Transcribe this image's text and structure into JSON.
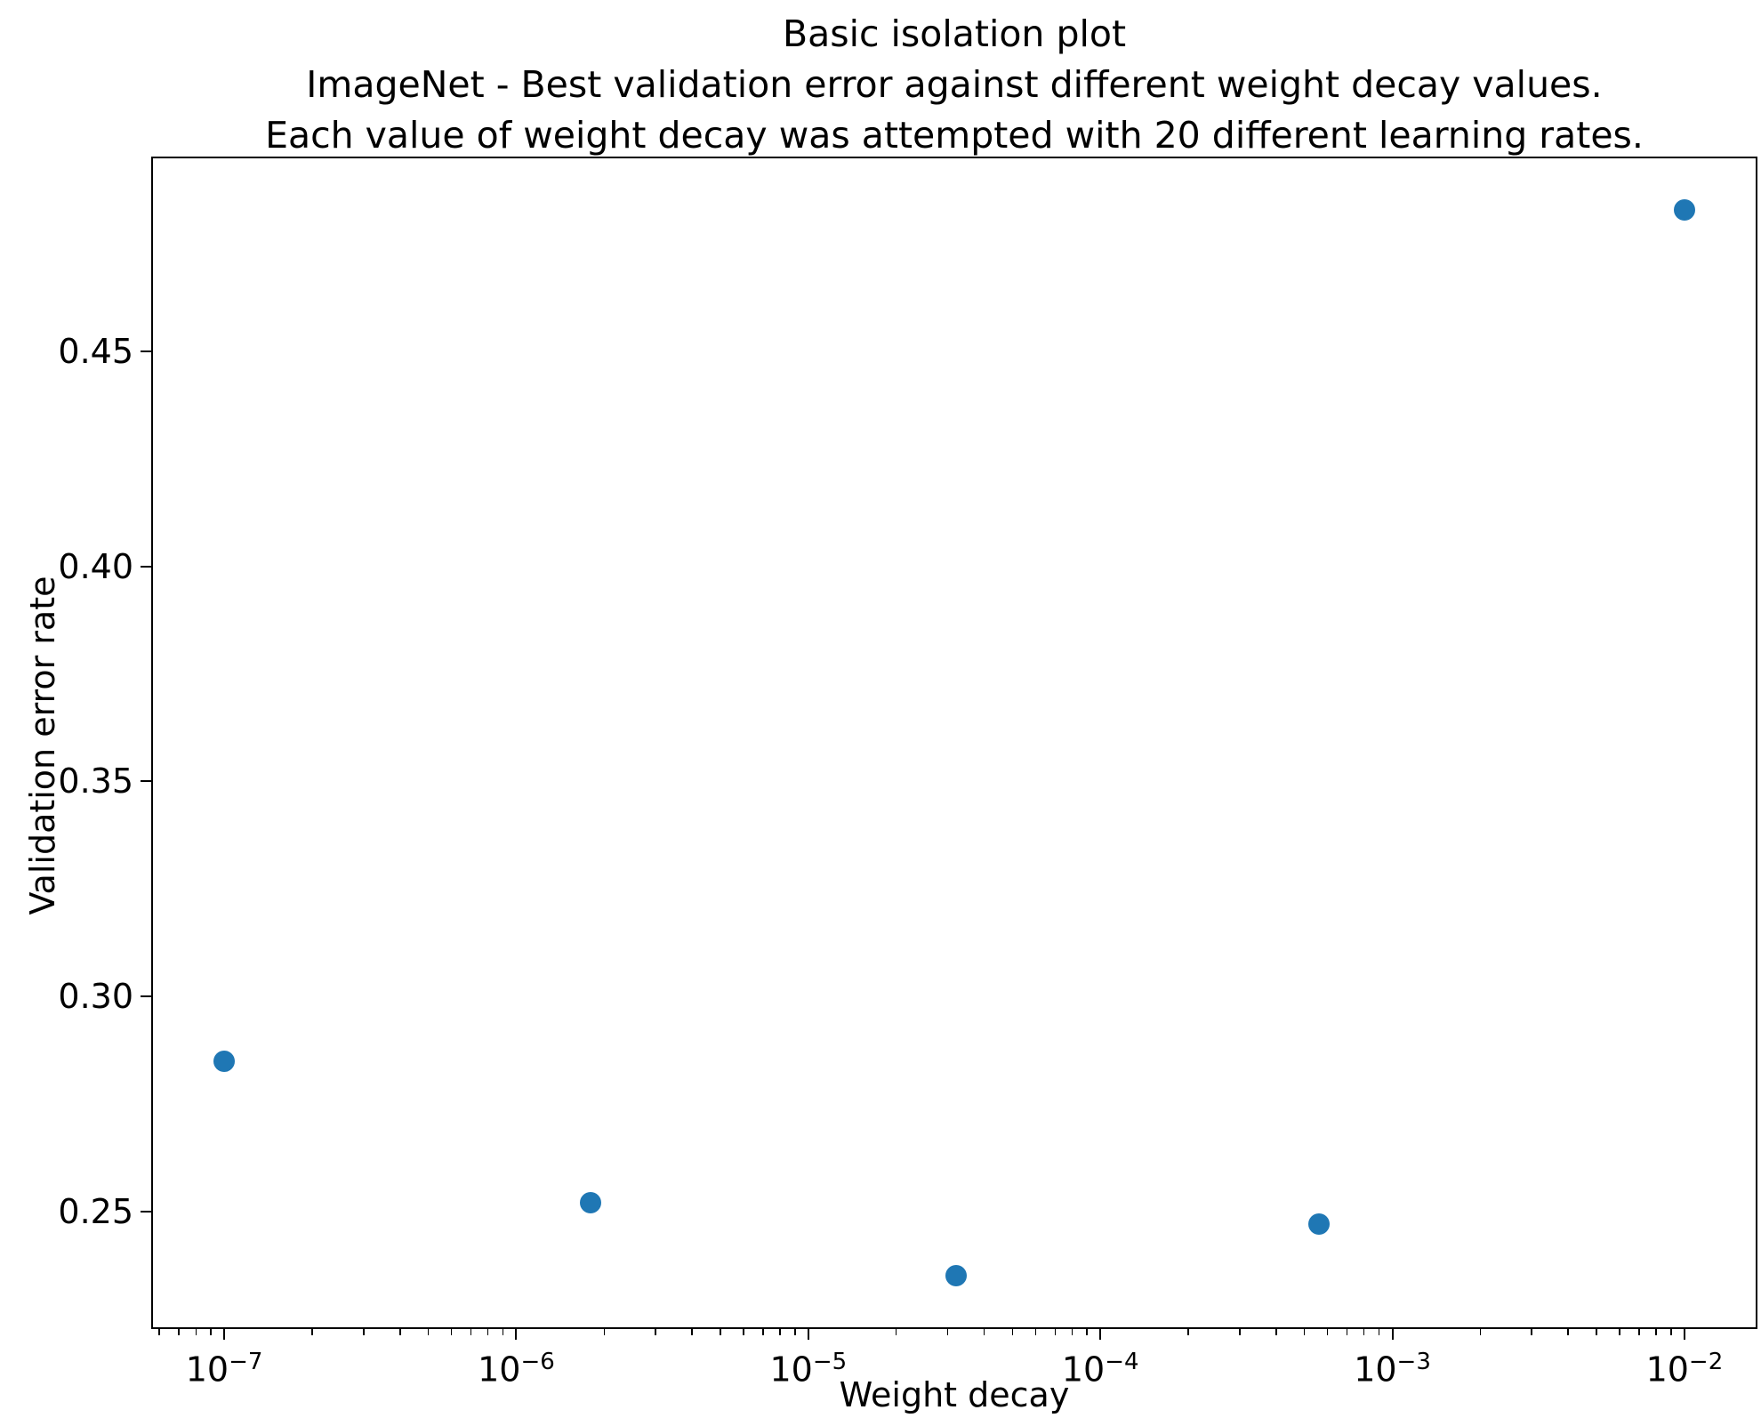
{
  "chart_data": {
    "type": "scatter",
    "title_lines": [
      "Basic isolation plot",
      "ImageNet - Best validation error against different weight decay values.",
      "Each value of weight decay was attempted with 20 different learning rates."
    ],
    "xlabel": "Weight decay",
    "ylabel": "Validation error rate",
    "x_scale": "log",
    "xlim_log10": [
      -7.25,
      -1.75
    ],
    "ylim": [
      0.2226,
      0.4954
    ],
    "x_tick_exponents": [
      -7,
      -6,
      -5,
      -4,
      -3,
      -2
    ],
    "y_ticks": [
      0.25,
      0.3,
      0.35,
      0.4,
      0.45
    ],
    "grid": false,
    "legend": "none",
    "marker_color": "#1f77b4",
    "points": [
      {
        "x": 1e-07,
        "y": 0.285
      },
      {
        "x": 1.8e-06,
        "y": 0.252
      },
      {
        "x": 3.2e-05,
        "y": 0.235
      },
      {
        "x": 0.00056,
        "y": 0.247
      },
      {
        "x": 0.01,
        "y": 0.483
      }
    ]
  }
}
